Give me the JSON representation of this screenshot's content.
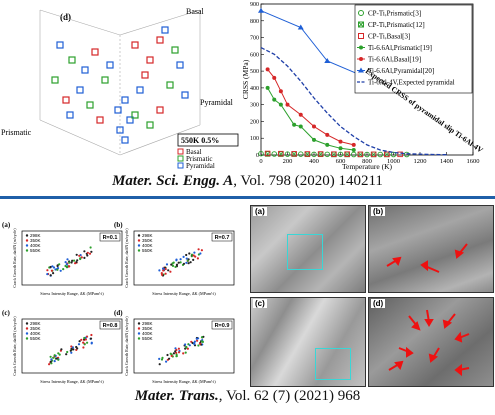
{
  "top_left": {
    "panel_label": "(d)",
    "axis_labels": {
      "basal": "Basal",
      "prismatic": "Prismatic",
      "pyramidal": "Pyramidal"
    },
    "condition": "550K 0.5%",
    "legend": [
      {
        "label": "Basal",
        "color": "#d62728"
      },
      {
        "label": "Prismatic",
        "color": "#2ca02c"
      },
      {
        "label": "Pyramidal",
        "color": "#1f5fd6"
      }
    ]
  },
  "top_right": {
    "chart_data": {
      "type": "line",
      "ylabel": "CRSS (MPa)",
      "xlabel": "Temperature (K)",
      "xlim": [
        0,
        1600
      ],
      "ylim": [
        0,
        900
      ],
      "xticks": [
        "0",
        "200",
        "400",
        "600",
        "800",
        "1000",
        "1200",
        "1400",
        "1600"
      ],
      "yticks": [
        "0",
        "100",
        "200",
        "300",
        "400",
        "500",
        "600",
        "700",
        "800",
        "900"
      ],
      "annotation": "Expected CRSS of pyramidal slip Ti-6Al-4V",
      "series": [
        {
          "name": "CP-Ti,Prismatic[3]",
          "color": "#2ca02c",
          "marker": "circle-open",
          "x": [
            0,
            100,
            200,
            300,
            400,
            500,
            600,
            700,
            800,
            900,
            1000,
            1100
          ],
          "y": [
            8,
            6,
            5,
            5,
            4,
            4,
            4,
            3,
            3,
            3,
            3,
            3
          ]
        },
        {
          "name": "CP-Ti,Prismatic[12]",
          "color": "#2ca02c",
          "marker": "x-box",
          "x": [
            50,
            150,
            250,
            350,
            450,
            550,
            650,
            750,
            850,
            950
          ],
          "y": [
            6,
            5,
            5,
            4,
            4,
            3,
            3,
            3,
            3,
            3
          ]
        },
        {
          "name": "CP-Ti,Basal[3]",
          "color": "#d62728",
          "marker": "square-open",
          "x": [
            50,
            150,
            250,
            350,
            450,
            550,
            650,
            750,
            850,
            950,
            1050
          ],
          "y": [
            9,
            8,
            7,
            6,
            6,
            5,
            5,
            4,
            4,
            4,
            4
          ]
        },
        {
          "name": "Ti-6.6Al,Prismatic[19]",
          "color": "#2ca02c",
          "marker": "circle",
          "x": [
            50,
            100,
            150,
            250,
            300,
            400,
            500,
            600,
            700
          ],
          "y": [
            400,
            330,
            300,
            180,
            170,
            90,
            60,
            40,
            30
          ]
        },
        {
          "name": "Ti-6.6Al,Basal[19]",
          "color": "#d62728",
          "marker": "circle",
          "x": [
            50,
            100,
            150,
            200,
            300,
            400,
            500,
            600,
            700
          ],
          "y": [
            510,
            460,
            380,
            300,
            240,
            170,
            120,
            80,
            60
          ]
        },
        {
          "name": "Ti-6.6Al,Pyramidal[20]",
          "color": "#1f5fd6",
          "marker": "triangle",
          "x": [
            0,
            300,
            500,
            800,
            1000
          ],
          "y": [
            860,
            760,
            560,
            460,
            400
          ]
        },
        {
          "name": "Ti-6Al-4V,Expected pyramidal",
          "color": "#1f3fa8",
          "marker": "none",
          "dashed": true,
          "x": [
            0,
            100,
            200,
            300,
            400,
            500,
            600,
            700,
            800,
            900,
            1000,
            1100,
            1200,
            1300,
            1400
          ],
          "y": [
            640,
            600,
            530,
            440,
            340,
            250,
            170,
            110,
            60,
            30,
            15,
            8,
            5,
            3,
            2
          ]
        }
      ]
    }
  },
  "caption1": {
    "journal": "Mater. Sci. Engg. A",
    "rest": ", Vol. 798 (2020) 140211"
  },
  "bottom_left": {
    "panels": [
      {
        "label": "(a)",
        "r": "R=0.1",
        "ylabel": "Crack Growth Rate, da/dN (m/cycle)",
        "xlabel": "Stress Intensity Range, ΔK (MPam½)",
        "legend": [
          "298K",
          "350K",
          "400K",
          "550K"
        ]
      },
      {
        "label": "(b)",
        "r": "R=0.7",
        "ylabel": "Crack Growth Rate, da/dN (m/cycle)",
        "xlabel": "Stress Intensity Range, ΔK (MPam½)",
        "legend": [
          "298K",
          "350K",
          "400K",
          "550K"
        ]
      },
      {
        "label": "(c)",
        "r": "R=0.8",
        "ylabel": "Crack Growth Rate, da/dN (m/cycle)",
        "xlabel": "Stress Intensity Range, ΔK (MPam½)",
        "legend": [
          "298K",
          "350K",
          "400K",
          "550K"
        ]
      },
      {
        "label": "(d)",
        "r": "R=0.9",
        "ylabel": "Crack Growth Rate, da/dN (m/cycle)",
        "xlabel": "Stress Intensity Range, ΔK (MPam½)",
        "legend": [
          "298K",
          "350K",
          "400K",
          "550K"
        ]
      }
    ],
    "legend_colors": [
      "#222222",
      "#d62728",
      "#1f5fd6",
      "#2ca02c"
    ]
  },
  "bottom_right": {
    "panels": [
      {
        "label": "(a)"
      },
      {
        "label": "(b)"
      },
      {
        "label": "(c)"
      },
      {
        "label": "(d)"
      }
    ]
  },
  "caption2": {
    "journal": "Mater. Trans.",
    "rest": ", Vol. 62 (7) (2021) 968"
  }
}
